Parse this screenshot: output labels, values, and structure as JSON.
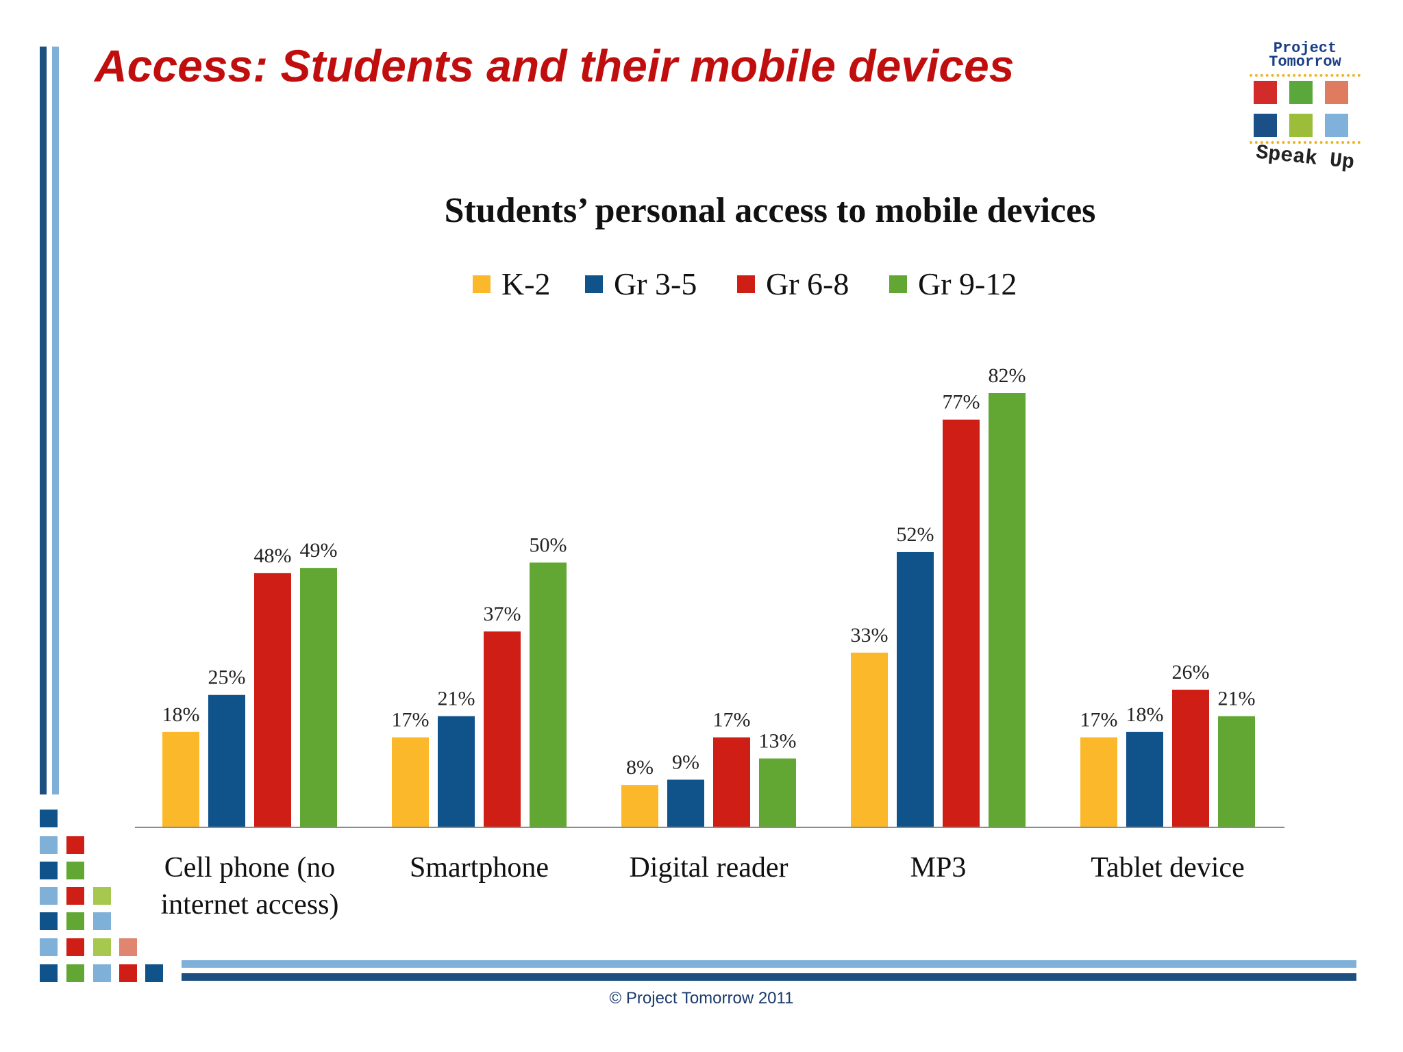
{
  "slide_title": "Access:  Students and their mobile devices",
  "logo": {
    "line1": "Project",
    "line2": "Tomorrow",
    "tagline": "Speak Up",
    "square_colors": [
      "#d32a2a",
      "#5aa83c",
      "#df7b5e",
      "#1b4f87",
      "#9bbd3a",
      "#7fb1da"
    ]
  },
  "footer": "© Project Tomorrow 2011",
  "colors": {
    "accent_title": "#c00e0e",
    "bar_dark": "#1d4f80",
    "bar_light": "#7fb0d8"
  },
  "chart_data": {
    "type": "bar",
    "title": "Students’ personal access to mobile devices",
    "categories": [
      "Cell phone (no internet access)",
      "Smartphone",
      "Digital reader",
      "MP3",
      "Tablet device"
    ],
    "category_lines": [
      [
        "Cell phone (no",
        "internet access)"
      ],
      [
        "Smartphone"
      ],
      [
        "Digital reader"
      ],
      [
        "MP3"
      ],
      [
        "Tablet device"
      ]
    ],
    "series": [
      {
        "name": "K-2",
        "color": "#fbb82b",
        "values": [
          18,
          17,
          8,
          33,
          17
        ]
      },
      {
        "name": "Gr 3-5",
        "color": "#10538a",
        "values": [
          25,
          21,
          9,
          52,
          18
        ]
      },
      {
        "name": "Gr 6-8",
        "color": "#cf1e15",
        "values": [
          48,
          37,
          17,
          77,
          26
        ]
      },
      {
        "name": "Gr 9-12",
        "color": "#62a733",
        "values": [
          49,
          50,
          13,
          82,
          21
        ]
      }
    ],
    "value_suffix": "%",
    "ylim": [
      0,
      82
    ],
    "legend_position": "top",
    "grid": false,
    "xlabel": "",
    "ylabel": ""
  }
}
